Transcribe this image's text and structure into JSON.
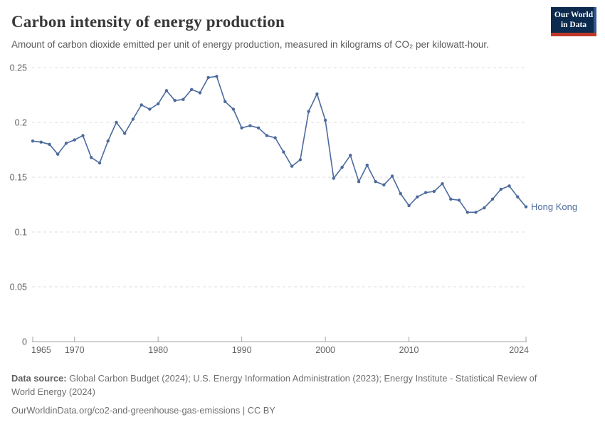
{
  "header": {
    "title": "Carbon intensity of energy production",
    "subtitle": "Amount of carbon dioxide emitted per unit of energy production, measured in kilograms of CO₂ per kilowatt-hour.",
    "logo": {
      "line1": "Our World",
      "line2": "in Data"
    }
  },
  "chart_data": {
    "type": "line",
    "title": "Carbon intensity of energy production",
    "unit": "kg CO₂ per kilowatt-hour",
    "x": [
      1965,
      1966,
      1967,
      1968,
      1969,
      1970,
      1971,
      1972,
      1973,
      1974,
      1975,
      1976,
      1977,
      1978,
      1979,
      1980,
      1981,
      1982,
      1983,
      1984,
      1985,
      1986,
      1987,
      1988,
      1989,
      1990,
      1991,
      1992,
      1993,
      1994,
      1995,
      1996,
      1997,
      1998,
      1999,
      2000,
      2001,
      2002,
      2003,
      2004,
      2005,
      2006,
      2007,
      2008,
      2009,
      2010,
      2011,
      2012,
      2013,
      2014,
      2015,
      2016,
      2017,
      2018,
      2019,
      2020,
      2021,
      2022,
      2023,
      2024
    ],
    "series": [
      {
        "name": "Hong Kong",
        "color": "#4C6A9C",
        "values": [
          0.183,
          0.182,
          0.18,
          0.171,
          0.181,
          0.184,
          0.188,
          0.168,
          0.163,
          0.183,
          0.2,
          0.19,
          0.203,
          0.216,
          0.212,
          0.217,
          0.229,
          0.22,
          0.221,
          0.23,
          0.227,
          0.241,
          0.242,
          0.219,
          0.212,
          0.195,
          0.197,
          0.195,
          0.188,
          0.186,
          0.173,
          0.16,
          0.166,
          0.21,
          0.226,
          0.202,
          0.149,
          0.159,
          0.17,
          0.146,
          0.161,
          0.146,
          0.143,
          0.151,
          0.135,
          0.124,
          0.132,
          0.136,
          0.137,
          0.144,
          0.13,
          0.129,
          0.118,
          0.118,
          0.122,
          0.13,
          0.139,
          0.142,
          0.132,
          0.123
        ]
      }
    ],
    "xlim": [
      1965,
      2024
    ],
    "ylim": [
      0,
      0.25
    ],
    "yticks": [
      0,
      0.05,
      0.1,
      0.15,
      0.2,
      0.25
    ],
    "xticks": [
      1965,
      1970,
      1980,
      1990,
      2000,
      2010,
      2024
    ],
    "grid": "horizontal-dashed",
    "legend_position": "end-of-line-label"
  },
  "style": {
    "line_color": "#4C6A9C",
    "grid_color": "#dcdcdc",
    "axis_color": "#a3a3a3",
    "tick_label_color": "#636363",
    "logo_navy": "#0b2a4e",
    "logo_red": "#bf3727",
    "logo_right_strip": "#33588c"
  },
  "footer": {
    "datasource_label": "Data source:",
    "datasource_text": " Global Carbon Budget (2024); U.S. Energy Information Administration (2023); Energy Institute - Statistical Review of World Energy (2024)",
    "citation": "OurWorldinData.org/co2-and-greenhouse-gas-emissions | CC BY"
  }
}
